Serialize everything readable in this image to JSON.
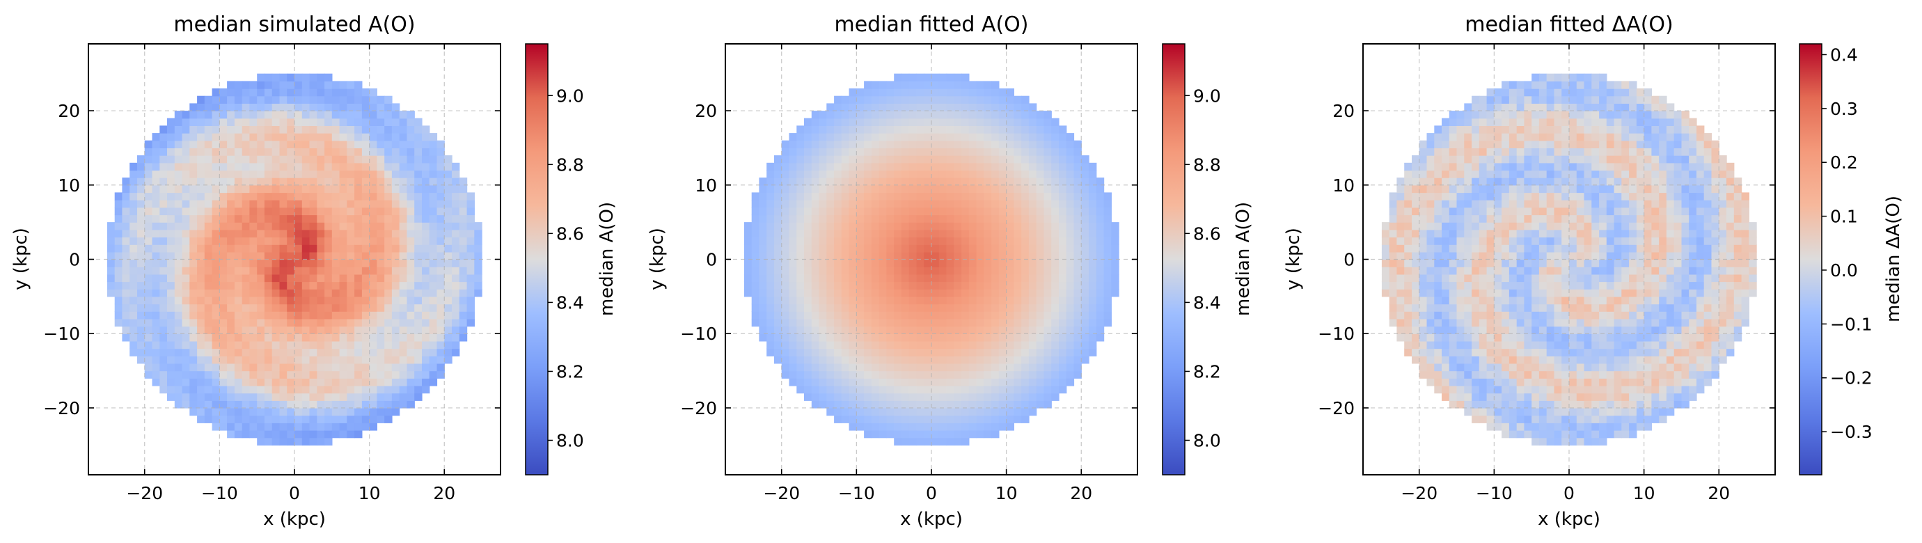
{
  "figure": {
    "background": "#ffffff"
  },
  "chart_data": [
    {
      "type": "heatmap",
      "title": "median simulated A(O)",
      "xlabel": "x (kpc)",
      "ylabel": "y (kpc)",
      "xlim": [
        -27.5,
        27.5
      ],
      "ylim": [
        -29,
        29
      ],
      "xticks": [
        -20,
        -10,
        0,
        10,
        20
      ],
      "yticks": [
        -20,
        -10,
        0,
        10,
        20
      ],
      "grid": true,
      "disk_radius_kpc": 25,
      "colormap": "coolwarm",
      "colorbar": {
        "label": "median A(O)",
        "vmin": 7.9,
        "vmax": 9.15,
        "ticks": [
          8.0,
          8.2,
          8.4,
          8.6,
          8.8,
          9.0
        ],
        "tick_labels": [
          "8.0",
          "8.2",
          "8.4",
          "8.6",
          "8.8",
          "9.0"
        ]
      },
      "field": {
        "center_value": 9.05,
        "gradient_per_kpc": -0.03,
        "spiral_amplitude": 0.09,
        "noise": 0.05
      }
    },
    {
      "type": "heatmap",
      "title": "median fitted A(O)",
      "xlabel": "x (kpc)",
      "ylabel": "y (kpc)",
      "xlim": [
        -27.5,
        27.5
      ],
      "ylim": [
        -29,
        29
      ],
      "xticks": [
        -20,
        -10,
        0,
        10,
        20
      ],
      "yticks": [
        -20,
        -10,
        0,
        10,
        20
      ],
      "grid": true,
      "disk_radius_kpc": 25,
      "colormap": "coolwarm",
      "colorbar": {
        "label": "median A(O)",
        "vmin": 7.9,
        "vmax": 9.15,
        "ticks": [
          8.0,
          8.2,
          8.4,
          8.6,
          8.8,
          9.0
        ],
        "tick_labels": [
          "8.0",
          "8.2",
          "8.4",
          "8.6",
          "8.8",
          "9.0"
        ]
      },
      "field": {
        "center_value": 9.02,
        "gradient_per_kpc": -0.028,
        "spiral_amplitude": 0,
        "noise": 0
      }
    },
    {
      "type": "heatmap",
      "title": "median fitted ΔA(O)",
      "xlabel": "x (kpc)",
      "ylabel": "y (kpc)",
      "xlim": [
        -27.5,
        27.5
      ],
      "ylim": [
        -29,
        29
      ],
      "xticks": [
        -20,
        -10,
        0,
        10,
        20
      ],
      "yticks": [
        -20,
        -10,
        0,
        10,
        20
      ],
      "grid": true,
      "disk_radius_kpc": 25,
      "colormap": "coolwarm",
      "colorbar": {
        "label": "median ΔA(O)",
        "vmin": -0.38,
        "vmax": 0.42,
        "ticks": [
          -0.3,
          -0.2,
          -0.1,
          0.0,
          0.1,
          0.2,
          0.3,
          0.4
        ],
        "tick_labels": [
          "−0.3",
          "−0.2",
          "−0.1",
          "0.0",
          "0.1",
          "0.2",
          "0.3",
          "0.4"
        ]
      },
      "field": {
        "center_value": 0.0,
        "gradient_per_kpc": 0,
        "spiral_amplitude": 0.07,
        "noise": 0.045
      }
    }
  ]
}
